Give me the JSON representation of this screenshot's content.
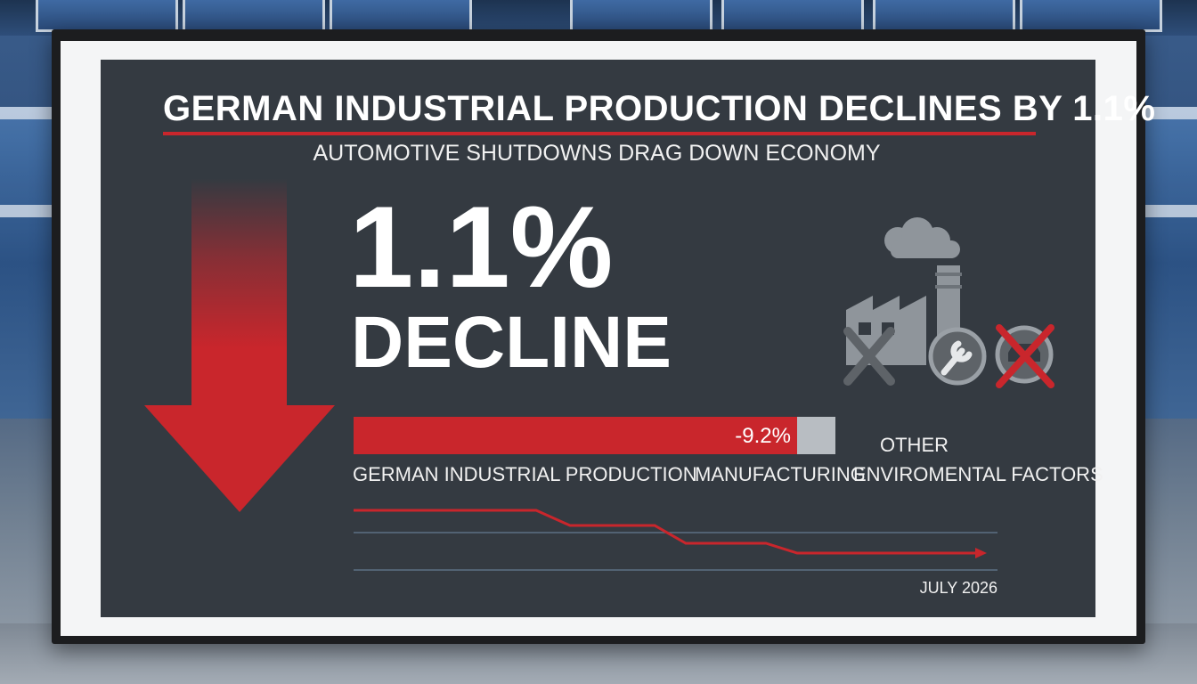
{
  "headline": "GERMAN INDUSTRIAL PRODUCTION DECLINES BY 1.1%",
  "subheadline": "AUTOMOTIVE SHUTDOWNS DRAG DOWN ECONOMY",
  "stat": {
    "value": "1.1%",
    "label": "DECLINE"
  },
  "breakdown": {
    "bar_fill_fraction": 0.92,
    "bar_value": "-9.2%",
    "labels": {
      "german_industrial_production": "GERMAN INDUSTRIAL PRODUCTION",
      "manufacturing": "MANUFACTURING",
      "other": "OTHER",
      "environmental": "ENVIROMENTAL FACTORS"
    }
  },
  "trend": {
    "date": "JULY 2026"
  },
  "icons": [
    "smoke-icon",
    "factory-icon",
    "wrench-icon",
    "car-crossed-icon"
  ],
  "colors": {
    "accent": "#c9262c",
    "screen": "#343a41",
    "text": "#ffffff",
    "icon_gray": "#8f959b"
  }
}
